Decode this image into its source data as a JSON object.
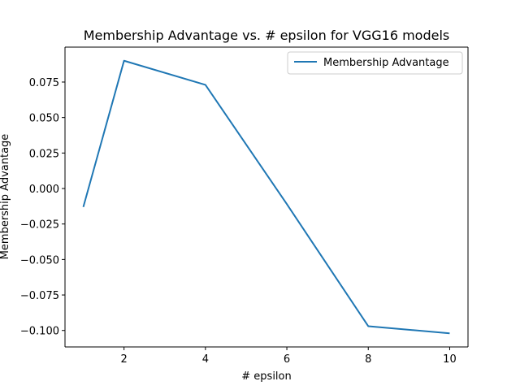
{
  "chart_data": {
    "type": "line",
    "title": "Membership Advantage vs. # epsilon for VGG16 models",
    "xlabel": "# epsilon",
    "ylabel": "Membership Advantage",
    "x": [
      1,
      2,
      4,
      6,
      8,
      10
    ],
    "series": [
      {
        "name": "Membership Advantage",
        "color": "#1f77b4",
        "values": [
          -0.013,
          0.09,
          0.073,
          -0.011,
          -0.097,
          -0.102
        ]
      }
    ],
    "xlim": [
      0.55,
      10.45
    ],
    "ylim": [
      -0.1116,
      0.0996
    ],
    "xticks": [
      2,
      4,
      6,
      8,
      10
    ],
    "xtick_labels": [
      "2",
      "4",
      "6",
      "8",
      "10"
    ],
    "yticks": [
      0.075,
      0.05,
      0.025,
      0.0,
      -0.025,
      -0.05,
      -0.075,
      -0.1
    ],
    "ytick_labels": [
      "0.075",
      "0.050",
      "0.025",
      "0.000",
      "−0.025",
      "−0.050",
      "−0.075",
      "−0.100"
    ],
    "grid": false,
    "legend": "upper right"
  }
}
